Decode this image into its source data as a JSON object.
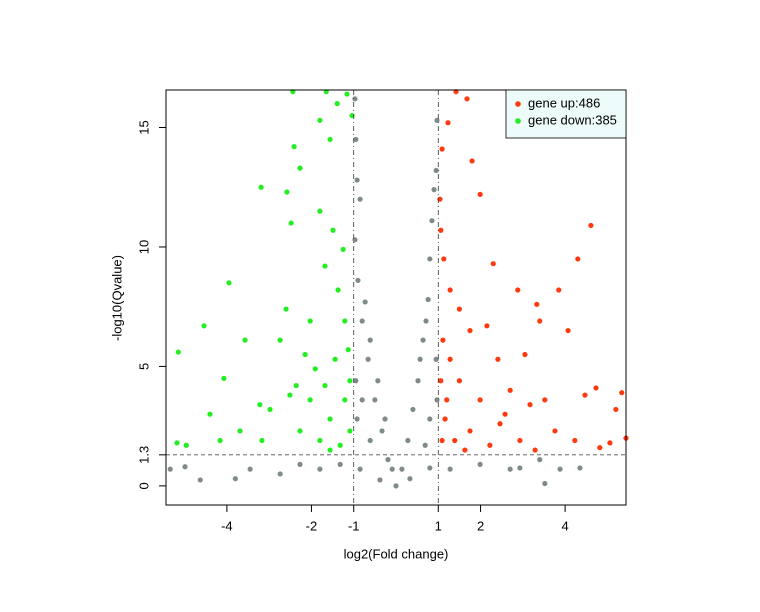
{
  "chart_data": {
    "type": "scatter",
    "xlabel": "log2(Fold change)",
    "ylabel": "-log10(Qvalue)",
    "xlim": [
      -5.44,
      5.44
    ],
    "ylim": [
      -0.8,
      16.57
    ],
    "xticks": [
      -4,
      -2,
      -1,
      1,
      2,
      4
    ],
    "yticks": [
      0,
      1.3,
      5,
      10,
      15
    ],
    "vlines": [
      -1,
      1
    ],
    "hlines": [
      1.3
    ],
    "legend": "topright",
    "series": [
      {
        "color": "#7f8a8a",
        "x": [
          -5.34,
          -4.99,
          -4.63,
          -3.8,
          -3.45,
          -2.74,
          -2.27,
          -1.8,
          -1.32,
          -0.85,
          -0.38,
          0,
          0.33,
          0.8,
          1.28,
          1.99,
          2.7,
          3.52,
          3.4,
          2.93,
          3.88,
          4.35,
          -0.97,
          -0.95,
          -0.97,
          -0.9,
          -0.8,
          -0.66,
          -0.5,
          -0.33,
          -0.19,
          -0.85,
          -0.92,
          -0.73,
          -0.61,
          -0.43,
          -0.26,
          -0.09,
          -0.95,
          -0.92,
          -0.8,
          -0.61,
          0.97,
          0.95,
          0.85,
          0.8,
          0.76,
          0.64,
          0.52,
          0.4,
          0.28,
          0.14,
          0.9,
          0.71,
          0.57,
          0.95,
          0.97,
          0.8,
          0.69
        ],
        "values": [
          0.7,
          0.8,
          0.25,
          0.3,
          0.7,
          0.5,
          0.9,
          0.7,
          0.9,
          0.7,
          0.25,
          0,
          0.3,
          0.75,
          0.7,
          0.9,
          0.7,
          0.1,
          1.1,
          0.75,
          0.7,
          0.75,
          16.2,
          14.5,
          10.3,
          8.6,
          6.9,
          5.3,
          3.6,
          2.3,
          1.1,
          12,
          12.8,
          7.7,
          6.1,
          4.4,
          2.8,
          0.7,
          4.4,
          2.8,
          3.6,
          1.9,
          15.3,
          13.2,
          11.1,
          9.5,
          7.8,
          6.1,
          4.4,
          3.2,
          1.9,
          0.7,
          12.4,
          6.9,
          5.3,
          5.3,
          3.6,
          2.8,
          1.7
        ]
      },
      {
        "name": "gene up:486",
        "color": "#ff3a10",
        "x": [
          4.61,
          4.3,
          3.85,
          3.33,
          2.88,
          2.3,
          1.99,
          1.8,
          1.68,
          1.42,
          1.23,
          1.09,
          5.34,
          5.2,
          5.44,
          4.73,
          4.47,
          4.07,
          3.4,
          3.05,
          2.41,
          2.15,
          1.75,
          1.5,
          1.28,
          1.13,
          1.06,
          1.04,
          1.16,
          1.39,
          1.75,
          2.22,
          2.58,
          2.93,
          3.29,
          3.76,
          4.23,
          4.82,
          5.06,
          1.99,
          1.5,
          1.28,
          1.2,
          1.63,
          2.7,
          3.17,
          2.46,
          3.52,
          1.09,
          1.06,
          1.11
        ],
        "values": [
          10.9,
          9.5,
          8.2,
          7.6,
          8.2,
          9.3,
          12.2,
          13.6,
          16.2,
          16.5,
          15.2,
          14.1,
          3.9,
          3.2,
          2,
          4.1,
          3.8,
          6.5,
          6.9,
          5.5,
          5.3,
          6.7,
          6.5,
          7.4,
          8.2,
          9.5,
          10.7,
          12,
          2.8,
          1.9,
          2.3,
          1.7,
          3,
          1.9,
          1.5,
          2.3,
          1.9,
          1.6,
          1.8,
          3.6,
          4.4,
          5.3,
          3.6,
          1.5,
          4,
          3.4,
          2.6,
          3.6,
          1.9,
          4.4,
          6.1
        ]
      },
      {
        "name": "gene down:385",
        "color": "#22ee22",
        "x": [
          -5.15,
          -4.54,
          -3.95,
          -3.19,
          -2.58,
          -2.48,
          -2.41,
          -2.27,
          -2.44,
          -1.65,
          -1.8,
          -1.56,
          -1.39,
          -1.16,
          -1.04,
          -1.8,
          -1.49,
          -1.25,
          -1.68,
          -1.37,
          -2.03,
          -2.6,
          -2.74,
          -3.57,
          -4.07,
          -4.4,
          -5.18,
          -4.96,
          -4.16,
          -3.69,
          -3.17,
          -2.98,
          -2.51,
          -2.27,
          -2.03,
          -1.8,
          -1.56,
          -1.32,
          -1.21,
          -1.09,
          -1.13,
          -1.21,
          -1.44,
          -1.68,
          -1.91,
          -2.15,
          -2.36,
          -3.22,
          -1.09,
          -1.56
        ],
        "values": [
          5.6,
          6.7,
          8.5,
          12.5,
          12.3,
          11,
          14.2,
          13.3,
          16.5,
          16.5,
          15.3,
          14.5,
          16,
          16.4,
          15.5,
          11.5,
          10.7,
          9.9,
          9.2,
          8.2,
          6.9,
          7.4,
          6.1,
          6.1,
          4.5,
          3,
          1.8,
          1.7,
          1.9,
          2.3,
          1.9,
          3.2,
          3.8,
          2.3,
          3.6,
          1.9,
          2.8,
          1.7,
          3.6,
          4.4,
          5.7,
          6.9,
          5.3,
          4.2,
          4.9,
          5.5,
          4.2,
          3.4,
          2.3,
          1.5
        ]
      }
    ]
  }
}
